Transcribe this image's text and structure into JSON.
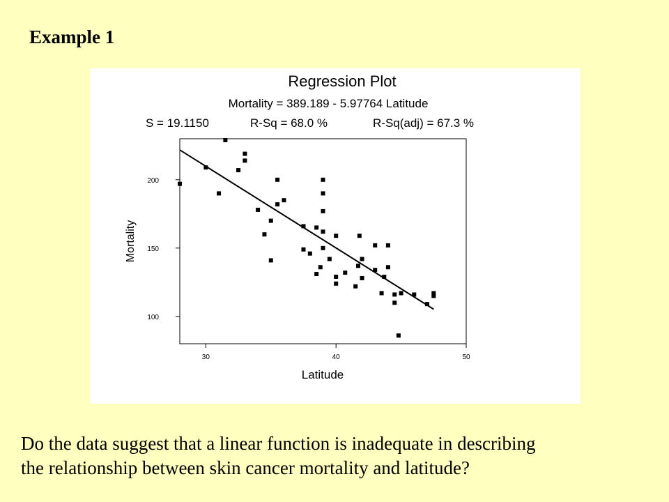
{
  "slide": {
    "title": "Example 1",
    "question_line1": "Do the data suggest that a linear function is inadequate in describing",
    "question_line2": "the relationship between skin cancer mortality and latitude?"
  },
  "colors": {
    "background": "#ffffc0",
    "panel": "#ffffff",
    "ink": "#000000"
  },
  "chart_data": {
    "type": "scatter",
    "title": "Regression Plot",
    "equation": "Mortality = 389.189 - 5.97764 Latitude",
    "stats": {
      "s": "S = 19.1150",
      "r_sq": "R-Sq = 68.0 %",
      "r_sq_adj": "R-Sq(adj) = 67.3 %"
    },
    "xlabel": "Latitude",
    "ylabel": "Mortality",
    "xlim": [
      28,
      50
    ],
    "ylim": [
      80,
      230
    ],
    "x_ticks": [
      30,
      40,
      50
    ],
    "y_ticks": [
      100,
      150,
      200
    ],
    "grid": false,
    "legend": "none",
    "fit_line": {
      "intercept": 389.189,
      "slope": -5.97764,
      "x_range": [
        28.0,
        47.5
      ]
    },
    "points": [
      {
        "x": 33.0,
        "y": 219
      },
      {
        "x": 34.5,
        "y": 160
      },
      {
        "x": 35.0,
        "y": 170
      },
      {
        "x": 35.5,
        "y": 182
      },
      {
        "x": 37.5,
        "y": 149
      },
      {
        "x": 38.0,
        "y": 146
      },
      {
        "x": 38.5,
        "y": 131
      },
      {
        "x": 39.5,
        "y": 142
      },
      {
        "x": 40.0,
        "y": 124
      },
      {
        "x": 39.0,
        "y": 162
      },
      {
        "x": 39.0,
        "y": 177
      },
      {
        "x": 38.5,
        "y": 165
      },
      {
        "x": 44.0,
        "y": 136
      },
      {
        "x": 40.0,
        "y": 129
      },
      {
        "x": 43.0,
        "y": 152
      },
      {
        "x": 42.0,
        "y": 142
      },
      {
        "x": 43.0,
        "y": 134
      },
      {
        "x": 35.5,
        "y": 200
      },
      {
        "x": 36.0,
        "y": 185
      },
      {
        "x": 39.0,
        "y": 190
      },
      {
        "x": 44.0,
        "y": 152
      },
      {
        "x": 31.0,
        "y": 190
      },
      {
        "x": 30.0,
        "y": 209
      },
      {
        "x": 28.0,
        "y": 197
      },
      {
        "x": 33.0,
        "y": 214
      },
      {
        "x": 32.5,
        "y": 207
      },
      {
        "x": 31.5,
        "y": 229
      },
      {
        "x": 37.5,
        "y": 166
      },
      {
        "x": 39.0,
        "y": 150
      },
      {
        "x": 40.0,
        "y": 159
      },
      {
        "x": 38.8,
        "y": 136
      },
      {
        "x": 41.8,
        "y": 159
      },
      {
        "x": 40.7,
        "y": 132
      },
      {
        "x": 43.7,
        "y": 129
      },
      {
        "x": 41.7,
        "y": 137
      },
      {
        "x": 41.5,
        "y": 122
      },
      {
        "x": 42.0,
        "y": 128
      },
      {
        "x": 44.5,
        "y": 116
      },
      {
        "x": 45.0,
        "y": 117
      },
      {
        "x": 46.0,
        "y": 116
      },
      {
        "x": 47.0,
        "y": 109
      },
      {
        "x": 47.5,
        "y": 115
      },
      {
        "x": 47.5,
        "y": 117
      },
      {
        "x": 44.5,
        "y": 110
      },
      {
        "x": 43.5,
        "y": 117
      },
      {
        "x": 44.8,
        "y": 86
      },
      {
        "x": 39.0,
        "y": 200
      },
      {
        "x": 34.0,
        "y": 178
      },
      {
        "x": 35.0,
        "y": 141
      }
    ]
  }
}
